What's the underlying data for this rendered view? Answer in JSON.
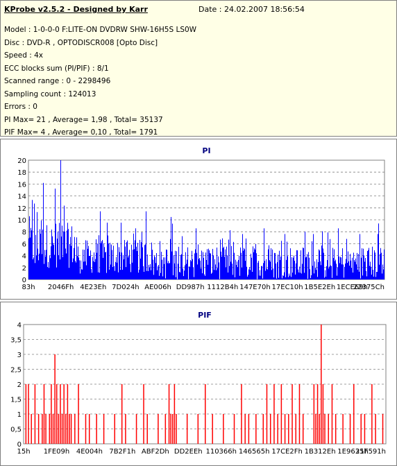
{
  "info": {
    "title": "KProbe v2.5.2 - Designed by Karr",
    "date": "Date : 24.02.2007 18:56:54",
    "lines": [
      "Model : 1-0-0-0 F:LITE-ON DVDRW SHW-16H5S  LS0W",
      "Disc : DVD-R , OPTODISCR008 [Opto Disc]",
      "Speed : 4x",
      "ECC blocks sum (PI/PIF) : 8/1",
      "Scanned range : 0 - 2298496",
      "Sampling count : 124013",
      "Errors : 0",
      "PI Max= 21 , Average= 1,98 , Total= 35137",
      "PIF Max= 4 , Average= 0,10 , Total= 1791"
    ]
  },
  "chart_data": [
    {
      "type": "bar",
      "title": "PI",
      "color": "#0000ff",
      "ylim": [
        0,
        21
      ],
      "yticks": [
        "0",
        "2",
        "4",
        "6",
        "8",
        "10",
        "12",
        "14",
        "16",
        "18",
        "20"
      ],
      "xticks": [
        "83h",
        "2046Fh",
        "4E23Eh",
        "7D024h",
        "AE006h",
        "DD987h",
        "1112B4h",
        "147E70h",
        "17EC10h",
        "1B5E2Eh",
        "1ECE69h",
        "22375Ch"
      ],
      "grid": true,
      "summary": {
        "max": 21,
        "average": 1.98,
        "total": 35137
      },
      "segments": [
        {
          "from": 0.0,
          "to": 0.13,
          "base": 6,
          "var": 4,
          "spikes": [
            [
              0.01,
              14
            ],
            [
              0.04,
              17
            ],
            [
              0.075,
              16
            ],
            [
              0.09,
              21
            ],
            [
              0.1,
              13
            ]
          ]
        },
        {
          "from": 0.13,
          "to": 0.35,
          "base": 4,
          "var": 3,
          "spikes": [
            [
              0.2,
              12
            ],
            [
              0.22,
              10
            ],
            [
              0.26,
              10
            ],
            [
              0.3,
              9
            ],
            [
              0.33,
              12
            ]
          ]
        },
        {
          "from": 0.35,
          "to": 0.68,
          "base": 3,
          "var": 3,
          "spikes": [
            [
              0.4,
              11
            ],
            [
              0.47,
              9
            ],
            [
              0.5,
              8
            ],
            [
              0.6,
              8
            ],
            [
              0.66,
              9
            ]
          ]
        },
        {
          "from": 0.68,
          "to": 1.0,
          "base": 3,
          "var": 3,
          "spikes": [
            [
              0.72,
              8
            ],
            [
              0.8,
              8
            ],
            [
              0.87,
              9
            ],
            [
              0.93,
              8
            ],
            [
              0.98,
              8
            ]
          ]
        }
      ]
    },
    {
      "type": "bar",
      "title": "PIF",
      "color": "#ff0000",
      "ylim": [
        0,
        4
      ],
      "yticks": [
        "0",
        "0,5",
        "1",
        "1,5",
        "2",
        "2,5",
        "3",
        "3,5",
        "4"
      ],
      "xticks": [
        "15h",
        "1FE09h",
        "4E004h",
        "7B2F1h",
        "ABF2Dh",
        "DD2EEh",
        "110366h",
        "146565h",
        "17CE2Fh",
        "1B312Eh",
        "1E9635h",
        "21F591h"
      ],
      "grid": true,
      "summary": {
        "max": 4,
        "average": 0.1,
        "total": 1791
      },
      "bars": [
        [
          0.005,
          2
        ],
        [
          0.012,
          2
        ],
        [
          0.02,
          1
        ],
        [
          0.03,
          2
        ],
        [
          0.04,
          1
        ],
        [
          0.05,
          1
        ],
        [
          0.055,
          2
        ],
        [
          0.06,
          1
        ],
        [
          0.07,
          1
        ],
        [
          0.075,
          2
        ],
        [
          0.08,
          1
        ],
        [
          0.085,
          3
        ],
        [
          0.09,
          2
        ],
        [
          0.095,
          1
        ],
        [
          0.1,
          2
        ],
        [
          0.105,
          1
        ],
        [
          0.11,
          2
        ],
        [
          0.115,
          1
        ],
        [
          0.12,
          2
        ],
        [
          0.125,
          1
        ],
        [
          0.13,
          1
        ],
        [
          0.14,
          1
        ],
        [
          0.15,
          2
        ],
        [
          0.17,
          1
        ],
        [
          0.18,
          1
        ],
        [
          0.2,
          1
        ],
        [
          0.22,
          1
        ],
        [
          0.25,
          1
        ],
        [
          0.27,
          2
        ],
        [
          0.28,
          1
        ],
        [
          0.31,
          1
        ],
        [
          0.33,
          2
        ],
        [
          0.34,
          1
        ],
        [
          0.37,
          1
        ],
        [
          0.39,
          1
        ],
        [
          0.4,
          2
        ],
        [
          0.405,
          1
        ],
        [
          0.41,
          1
        ],
        [
          0.415,
          2
        ],
        [
          0.42,
          1
        ],
        [
          0.45,
          1
        ],
        [
          0.48,
          1
        ],
        [
          0.5,
          2
        ],
        [
          0.52,
          1
        ],
        [
          0.55,
          1
        ],
        [
          0.58,
          1
        ],
        [
          0.6,
          2
        ],
        [
          0.61,
          1
        ],
        [
          0.62,
          1
        ],
        [
          0.64,
          1
        ],
        [
          0.66,
          1
        ],
        [
          0.67,
          2
        ],
        [
          0.68,
          1
        ],
        [
          0.69,
          2
        ],
        [
          0.7,
          1
        ],
        [
          0.71,
          2
        ],
        [
          0.72,
          1
        ],
        [
          0.73,
          1
        ],
        [
          0.74,
          2
        ],
        [
          0.75,
          1
        ],
        [
          0.76,
          2
        ],
        [
          0.77,
          1
        ],
        [
          0.8,
          2
        ],
        [
          0.805,
          1
        ],
        [
          0.81,
          2
        ],
        [
          0.815,
          1
        ],
        [
          0.82,
          4
        ],
        [
          0.825,
          2
        ],
        [
          0.83,
          1
        ],
        [
          0.84,
          1
        ],
        [
          0.85,
          2
        ],
        [
          0.86,
          1
        ],
        [
          0.88,
          1
        ],
        [
          0.9,
          1
        ],
        [
          0.91,
          2
        ],
        [
          0.93,
          1
        ],
        [
          0.94,
          1
        ],
        [
          0.96,
          2
        ],
        [
          0.97,
          1
        ],
        [
          0.99,
          1
        ]
      ]
    }
  ]
}
